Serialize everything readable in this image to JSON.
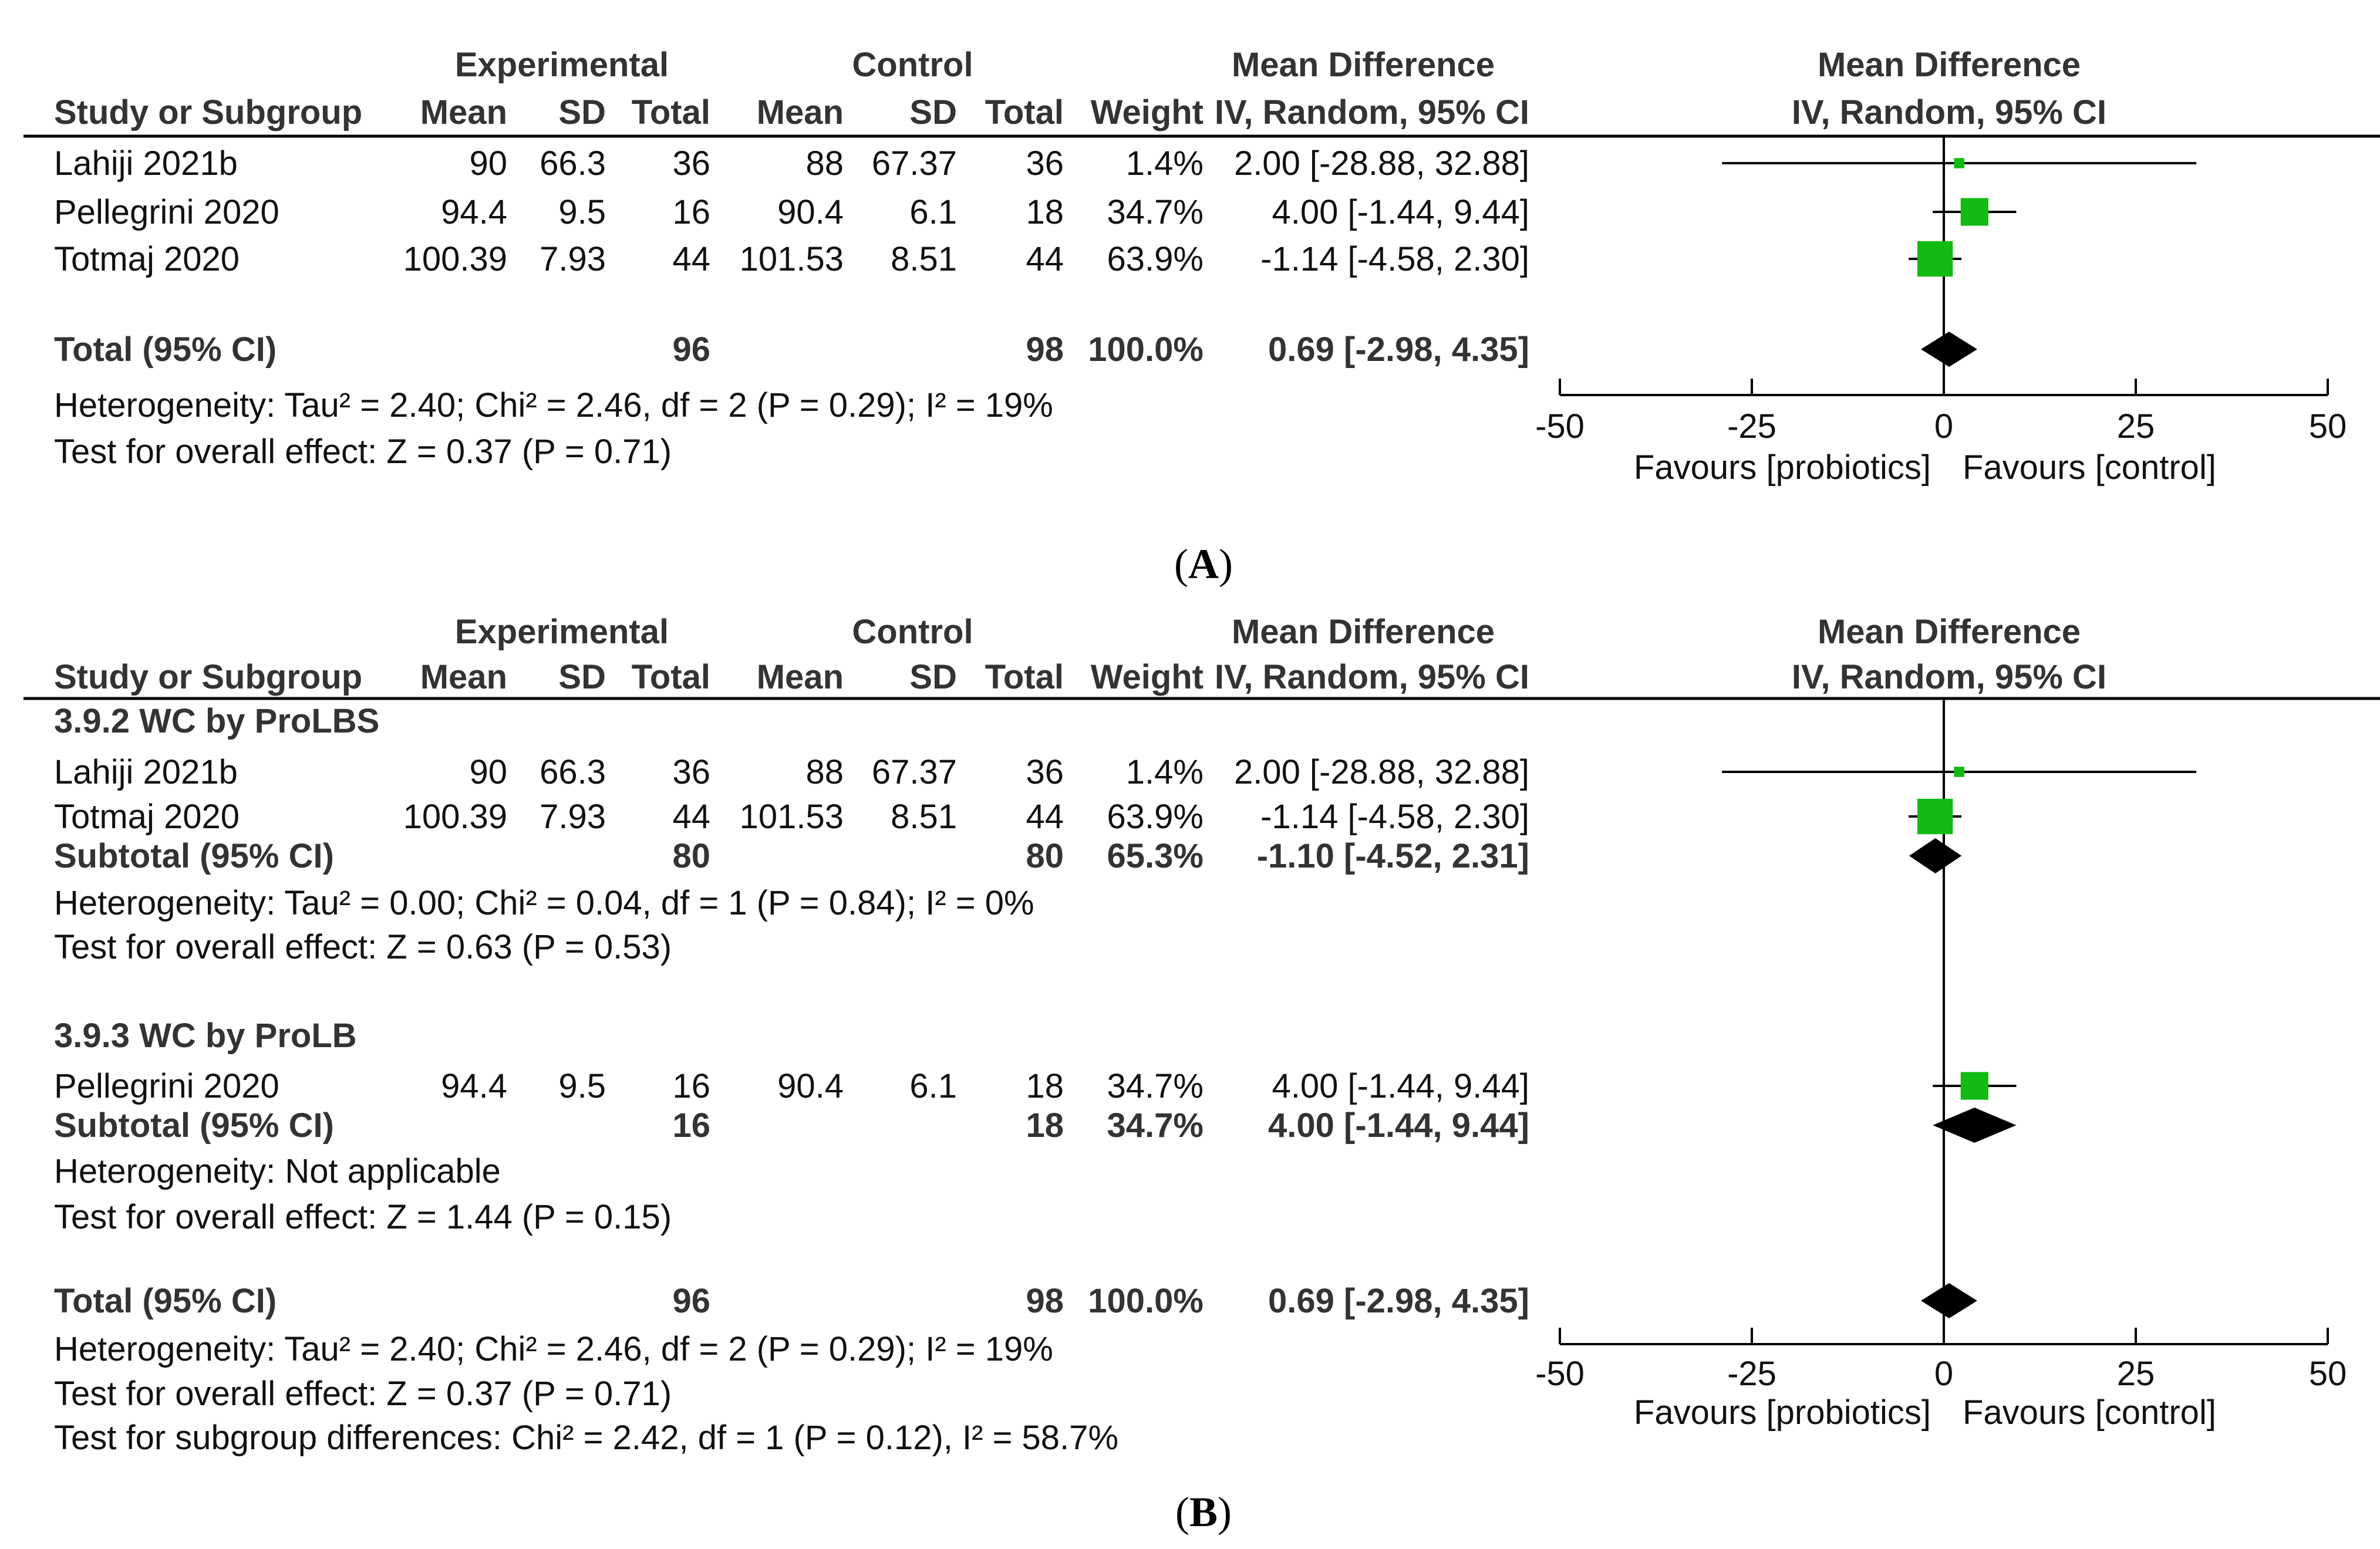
{
  "chart_data": [
    {
      "type": "forest",
      "panel_label": "(A)",
      "header": {
        "group_experimental": "Experimental",
        "group_control": "Control",
        "group_md": "Mean Difference",
        "group_plot": "Mean Difference",
        "col_study": "Study or Subgroup",
        "col_mean": "Mean",
        "col_sd": "SD",
        "col_total": "Total",
        "col_weight": "Weight",
        "col_method": "IV, Random, 95% CI",
        "plot_method": "IV, Random, 95% CI"
      },
      "rows": [
        {
          "kind": "study",
          "study": "Lahiji 2021b",
          "exp_mean": "90",
          "exp_sd": "66.3",
          "exp_total": "36",
          "ctl_mean": "88",
          "ctl_sd": "67.37",
          "ctl_total": "36",
          "weight": "1.4%",
          "ci_text": "2.00 [-28.88, 32.88]",
          "est": 2.0,
          "lo": -28.88,
          "hi": 32.88,
          "w": 1.4
        },
        {
          "kind": "study",
          "study": "Pellegrini 2020",
          "exp_mean": "94.4",
          "exp_sd": "9.5",
          "exp_total": "16",
          "ctl_mean": "90.4",
          "ctl_sd": "6.1",
          "ctl_total": "18",
          "weight": "34.7%",
          "ci_text": "4.00 [-1.44, 9.44]",
          "est": 4.0,
          "lo": -1.44,
          "hi": 9.44,
          "w": 34.7
        },
        {
          "kind": "study",
          "study": "Totmaj 2020",
          "exp_mean": "100.39",
          "exp_sd": "7.93",
          "exp_total": "44",
          "ctl_mean": "101.53",
          "ctl_sd": "8.51",
          "ctl_total": "44",
          "weight": "63.9%",
          "ci_text": "-1.14 [-4.58, 2.30]",
          "est": -1.14,
          "lo": -4.58,
          "hi": 2.3,
          "w": 63.9
        },
        {
          "kind": "total",
          "study": "Total (95% CI)",
          "exp_total": "96",
          "ctl_total": "98",
          "weight": "100.0%",
          "ci_text": "0.69 [-2.98, 4.35]",
          "est": 0.69,
          "lo": -2.98,
          "hi": 4.35
        },
        {
          "kind": "note",
          "text": "Heterogeneity: Tau² = 2.40; Chi² = 2.46, df = 2 (P = 0.29); I² = 19%"
        },
        {
          "kind": "note",
          "text": "Test for overall effect: Z = 0.37 (P = 0.71)"
        }
      ],
      "x_axis": {
        "min": -50,
        "max": 50,
        "ticks": [
          -50,
          -25,
          0,
          25,
          50
        ],
        "tick_labels": [
          "-50",
          "-25",
          "0",
          "25",
          "50"
        ]
      },
      "favours_left": "Favours [probiotics]",
      "favours_right": "Favours [control]"
    },
    {
      "type": "forest",
      "panel_label": "(B)",
      "header": {
        "group_experimental": "Experimental",
        "group_control": "Control",
        "group_md": "Mean Difference",
        "group_plot": "Mean Difference",
        "col_study": "Study or Subgroup",
        "col_mean": "Mean",
        "col_sd": "SD",
        "col_total": "Total",
        "col_weight": "Weight",
        "col_method": "IV, Random, 95% CI",
        "plot_method": "IV, Random, 95% CI"
      },
      "rows": [
        {
          "kind": "group",
          "text": "3.9.2 WC by ProLBS"
        },
        {
          "kind": "study",
          "study": "Lahiji 2021b",
          "exp_mean": "90",
          "exp_sd": "66.3",
          "exp_total": "36",
          "ctl_mean": "88",
          "ctl_sd": "67.37",
          "ctl_total": "36",
          "weight": "1.4%",
          "ci_text": "2.00 [-28.88, 32.88]",
          "est": 2.0,
          "lo": -28.88,
          "hi": 32.88,
          "w": 1.4
        },
        {
          "kind": "study",
          "study": "Totmaj 2020",
          "exp_mean": "100.39",
          "exp_sd": "7.93",
          "exp_total": "44",
          "ctl_mean": "101.53",
          "ctl_sd": "8.51",
          "ctl_total": "44",
          "weight": "63.9%",
          "ci_text": "-1.14 [-4.58, 2.30]",
          "est": -1.14,
          "lo": -4.58,
          "hi": 2.3,
          "w": 63.9
        },
        {
          "kind": "subtotal",
          "study": "Subtotal (95% CI)",
          "exp_total": "80",
          "ctl_total": "80",
          "weight": "65.3%",
          "ci_text": "-1.10 [-4.52, 2.31]",
          "est": -1.1,
          "lo": -4.52,
          "hi": 2.31
        },
        {
          "kind": "note",
          "text": "Heterogeneity: Tau² = 0.00; Chi² = 0.04, df = 1 (P = 0.84); I² = 0%"
        },
        {
          "kind": "note",
          "text": "Test for overall effect: Z = 0.63 (P = 0.53)"
        },
        {
          "kind": "group",
          "text": "3.9.3 WC by ProLB"
        },
        {
          "kind": "study",
          "study": "Pellegrini 2020",
          "exp_mean": "94.4",
          "exp_sd": "9.5",
          "exp_total": "16",
          "ctl_mean": "90.4",
          "ctl_sd": "6.1",
          "ctl_total": "18",
          "weight": "34.7%",
          "ci_text": "4.00 [-1.44, 9.44]",
          "est": 4.0,
          "lo": -1.44,
          "hi": 9.44,
          "w": 34.7
        },
        {
          "kind": "subtotal",
          "study": "Subtotal (95% CI)",
          "exp_total": "16",
          "ctl_total": "18",
          "weight": "34.7%",
          "ci_text": "4.00 [-1.44, 9.44]",
          "est": 4.0,
          "lo": -1.44,
          "hi": 9.44
        },
        {
          "kind": "note",
          "text": "Heterogeneity: Not applicable"
        },
        {
          "kind": "note",
          "text": "Test for overall effect: Z = 1.44 (P = 0.15)"
        },
        {
          "kind": "total",
          "study": "Total (95% CI)",
          "exp_total": "96",
          "ctl_total": "98",
          "weight": "100.0%",
          "ci_text": "0.69 [-2.98, 4.35]",
          "est": 0.69,
          "lo": -2.98,
          "hi": 4.35
        },
        {
          "kind": "note",
          "text": "Heterogeneity: Tau² = 2.40; Chi² = 2.46, df = 2 (P = 0.29); I² = 19%"
        },
        {
          "kind": "note",
          "text": "Test for overall effect: Z = 0.37 (P = 0.71)"
        },
        {
          "kind": "note",
          "text": "Test for subgroup differences: Chi² = 2.42, df = 1 (P = 0.12), I² = 58.7%"
        }
      ],
      "x_axis": {
        "min": -50,
        "max": 50,
        "ticks": [
          -50,
          -25,
          0,
          25,
          50
        ],
        "tick_labels": [
          "-50",
          "-25",
          "0",
          "25",
          "50"
        ]
      },
      "favours_left": "Favours [probiotics]",
      "favours_right": "Favours [control]"
    }
  ],
  "colors": {
    "marker": "#11bb11",
    "diamond": "#000000",
    "text": "#111111",
    "bold_text": "#333333"
  }
}
